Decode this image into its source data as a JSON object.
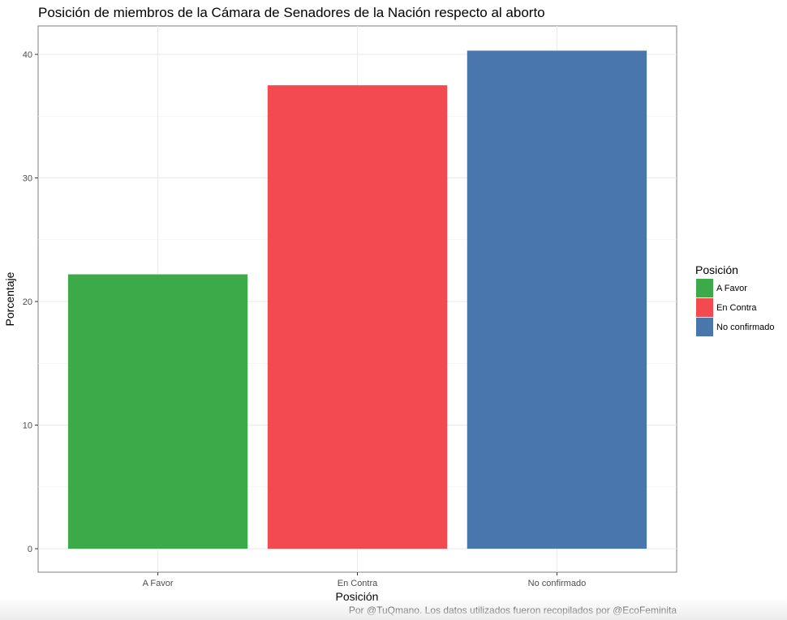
{
  "chart_data": {
    "type": "bar",
    "title": "Posición de miembros de la Cámara de Senadores de la Nación respecto al aborto",
    "xlabel": "Posición",
    "ylabel": "Porcentaje",
    "categories": [
      "A Favor",
      "En Contra",
      "No confirmado"
    ],
    "values": [
      22.2,
      37.5,
      40.3
    ],
    "colors": [
      "#3caa48",
      "#f24a50",
      "#4876ad"
    ],
    "ylim": [
      -1.9,
      42.3
    ],
    "yticks": [
      0,
      10,
      20,
      30,
      40
    ],
    "grid": true,
    "legend": {
      "title": "Posición",
      "position": "right",
      "entries": [
        "A Favor",
        "En Contra",
        "No confirmado"
      ]
    },
    "caption": "Por @TuQmano. Los datos utilizados fueron recopilados por @EcoFeminita"
  }
}
